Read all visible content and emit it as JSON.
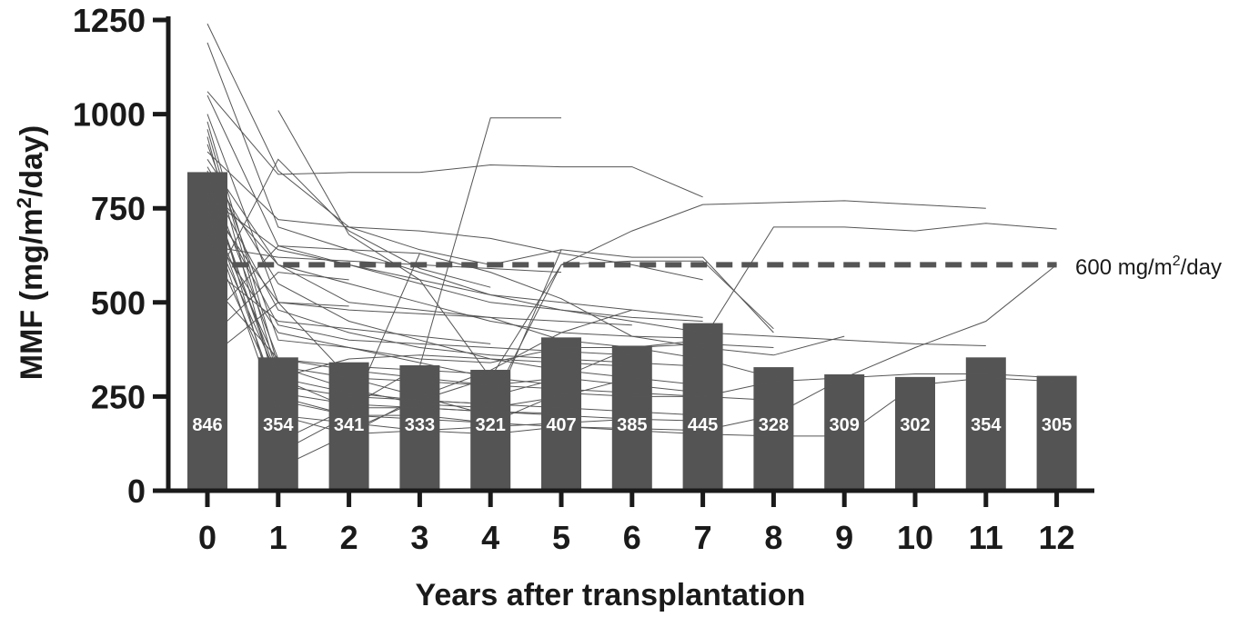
{
  "chart_data": {
    "type": "bar",
    "categories": [
      "0",
      "1",
      "2",
      "3",
      "4",
      "5",
      "6",
      "7",
      "8",
      "9",
      "10",
      "11",
      "12"
    ],
    "values": [
      846,
      354,
      341,
      333,
      321,
      407,
      385,
      445,
      328,
      309,
      302,
      354,
      305
    ],
    "bar_labels": [
      "846",
      "354",
      "341",
      "333",
      "321",
      "407",
      "385",
      "445",
      "328",
      "309",
      "302",
      "354",
      "305"
    ],
    "xlabel": "Years after transplantation",
    "ylabel": {
      "prefix": "MMF (mg/m",
      "sup": "2",
      "suffix": "/day)"
    },
    "ylim": [
      0,
      1250
    ],
    "yticks": [
      0,
      250,
      500,
      750,
      1000,
      1250
    ],
    "ytick_labels": [
      "0",
      "250",
      "500",
      "750",
      "1000",
      "1250"
    ],
    "reference_line": {
      "value": 600,
      "x_start": 0.35,
      "x_end": 12,
      "label": {
        "prefix": "600 mg/m",
        "sup": "2",
        "suffix": "/day"
      }
    },
    "individual_lines": [
      [
        [
          0,
          1240
        ],
        [
          1,
          850
        ],
        [
          2,
          700
        ],
        [
          3,
          640
        ],
        [
          4,
          600
        ],
        [
          5,
          640
        ],
        [
          6,
          620
        ],
        [
          7,
          620
        ],
        [
          8,
          420
        ]
      ],
      [
        [
          0,
          1190
        ],
        [
          1,
          700
        ],
        [
          2,
          640
        ],
        [
          3,
          580
        ],
        [
          4,
          520
        ],
        [
          5,
          500
        ],
        [
          6,
          480
        ],
        [
          7,
          460
        ]
      ],
      [
        [
          0,
          1060
        ],
        [
          1,
          840
        ],
        [
          2,
          845
        ],
        [
          3,
          845
        ],
        [
          4,
          865
        ],
        [
          5,
          860
        ],
        [
          6,
          860
        ],
        [
          7,
          780
        ]
      ],
      [
        [
          0,
          1050
        ],
        [
          1,
          650
        ],
        [
          2,
          600
        ],
        [
          3,
          550
        ],
        [
          4,
          500
        ],
        [
          5,
          480
        ],
        [
          6,
          450
        ],
        [
          7,
          420
        ],
        [
          8,
          410
        ],
        [
          9,
          400
        ],
        [
          10,
          390
        ],
        [
          11,
          385
        ]
      ],
      [
        [
          0,
          1000
        ],
        [
          1,
          500
        ],
        [
          2,
          300
        ],
        [
          3,
          250
        ],
        [
          4,
          200
        ],
        [
          5,
          640
        ]
      ],
      [
        [
          0,
          980
        ],
        [
          1,
          330
        ],
        [
          2,
          270
        ],
        [
          3,
          230
        ],
        [
          4,
          220
        ],
        [
          5,
          250
        ],
        [
          6,
          300
        ]
      ],
      [
        [
          0,
          960
        ],
        [
          1,
          300
        ],
        [
          2,
          260
        ],
        [
          3,
          240
        ],
        [
          4,
          230
        ],
        [
          5,
          600
        ],
        [
          6,
          610
        ],
        [
          7,
          610
        ],
        [
          8,
          430
        ]
      ],
      [
        [
          0,
          940
        ],
        [
          1,
          250
        ],
        [
          2,
          200
        ],
        [
          3,
          200
        ],
        [
          4,
          180
        ],
        [
          5,
          260
        ],
        [
          6,
          250
        ],
        [
          7,
          250
        ],
        [
          8,
          290
        ],
        [
          9,
          300
        ],
        [
          10,
          310
        ],
        [
          11,
          310
        ],
        [
          12,
          300
        ]
      ],
      [
        [
          0,
          920
        ],
        [
          1,
          400
        ],
        [
          2,
          380
        ],
        [
          3,
          350
        ],
        [
          4,
          340
        ],
        [
          5,
          380
        ],
        [
          6,
          380
        ],
        [
          7,
          390
        ],
        [
          8,
          380
        ]
      ],
      [
        [
          0,
          900
        ],
        [
          1,
          720
        ],
        [
          2,
          700
        ],
        [
          3,
          690
        ],
        [
          4,
          670
        ],
        [
          5,
          630
        ],
        [
          6,
          600
        ],
        [
          7,
          560
        ]
      ],
      [
        [
          0,
          880
        ],
        [
          1,
          600
        ],
        [
          2,
          500
        ],
        [
          3,
          480
        ],
        [
          4,
          460
        ],
        [
          5,
          400
        ],
        [
          6,
          380
        ],
        [
          7,
          350
        ],
        [
          8,
          300
        ]
      ],
      [
        [
          0,
          860
        ],
        [
          1,
          550
        ],
        [
          2,
          450
        ],
        [
          3,
          400
        ],
        [
          4,
          350
        ],
        [
          5,
          320
        ],
        [
          6,
          300
        ],
        [
          7,
          280
        ]
      ],
      [
        [
          0,
          850
        ],
        [
          1,
          200
        ],
        [
          2,
          180
        ],
        [
          3,
          160
        ],
        [
          4,
          150
        ],
        [
          5,
          170
        ],
        [
          6,
          160
        ],
        [
          7,
          150
        ],
        [
          8,
          145
        ],
        [
          9,
          145
        ],
        [
          10,
          280
        ],
        [
          11,
          300
        ],
        [
          12,
          290
        ]
      ],
      [
        [
          0,
          840
        ],
        [
          1,
          350
        ],
        [
          2,
          320
        ],
        [
          3,
          300
        ],
        [
          4,
          280
        ],
        [
          5,
          300
        ],
        [
          6,
          280
        ],
        [
          7,
          260
        ]
      ],
      [
        [
          0,
          830
        ],
        [
          1,
          480
        ],
        [
          2,
          420
        ],
        [
          3,
          380
        ],
        [
          4,
          360
        ],
        [
          5,
          350
        ],
        [
          6,
          340
        ],
        [
          7,
          330
        ]
      ],
      [
        [
          0,
          820
        ],
        [
          1,
          280
        ],
        [
          2,
          250
        ],
        [
          3,
          240
        ],
        [
          4,
          230
        ],
        [
          5,
          220
        ],
        [
          6,
          210
        ],
        [
          7,
          200
        ]
      ],
      [
        [
          0,
          810
        ],
        [
          1,
          600
        ],
        [
          2,
          550
        ],
        [
          3,
          500
        ],
        [
          4,
          450
        ],
        [
          5,
          420
        ],
        [
          6,
          410
        ],
        [
          7,
          405
        ]
      ],
      [
        [
          0,
          800
        ],
        [
          1,
          300
        ],
        [
          2,
          220
        ],
        [
          3,
          220
        ],
        [
          4,
          210
        ],
        [
          5,
          200
        ],
        [
          6,
          190
        ],
        [
          7,
          185
        ]
      ],
      [
        [
          0,
          790
        ],
        [
          1,
          440
        ],
        [
          2,
          400
        ],
        [
          3,
          390
        ],
        [
          4,
          380
        ],
        [
          5,
          370
        ],
        [
          6,
          360
        ]
      ],
      [
        [
          0,
          780
        ],
        [
          1,
          640
        ],
        [
          2,
          600
        ],
        [
          3,
          560
        ],
        [
          4,
          520
        ],
        [
          5,
          480
        ],
        [
          6,
          460
        ],
        [
          7,
          450
        ]
      ],
      [
        [
          0,
          770
        ],
        [
          1,
          240
        ],
        [
          2,
          200
        ],
        [
          3,
          190
        ],
        [
          4,
          180
        ],
        [
          5,
          170
        ],
        [
          6,
          165
        ],
        [
          7,
          160
        ]
      ],
      [
        [
          0,
          760
        ],
        [
          1,
          500
        ],
        [
          2,
          480
        ],
        [
          3,
          470
        ],
        [
          4,
          460
        ],
        [
          5,
          450
        ],
        [
          6,
          440
        ]
      ],
      [
        [
          0,
          750
        ],
        [
          1,
          330
        ],
        [
          2,
          300
        ],
        [
          3,
          290
        ],
        [
          4,
          280
        ],
        [
          5,
          270
        ],
        [
          6,
          260
        ],
        [
          7,
          250
        ],
        [
          8,
          240
        ]
      ],
      [
        [
          0,
          740
        ],
        [
          1,
          200
        ],
        [
          2,
          150
        ],
        [
          3,
          160
        ],
        [
          4,
          170
        ],
        [
          5,
          180
        ],
        [
          6,
          190
        ]
      ],
      [
        [
          0,
          720
        ],
        [
          1,
          300
        ],
        [
          2,
          350
        ],
        [
          3,
          360
        ],
        [
          4,
          350
        ],
        [
          5,
          340
        ],
        [
          6,
          330
        ]
      ],
      [
        [
          0,
          700
        ],
        [
          1,
          420
        ],
        [
          2,
          380
        ],
        [
          3,
          340
        ],
        [
          4,
          300
        ],
        [
          5,
          280
        ]
      ],
      [
        [
          0,
          680
        ],
        [
          1,
          260
        ],
        [
          2,
          230
        ],
        [
          3,
          220
        ],
        [
          4,
          210
        ],
        [
          5,
          205
        ]
      ],
      [
        [
          0,
          650
        ],
        [
          1,
          620
        ],
        [
          2,
          610
        ],
        [
          3,
          600
        ],
        [
          4,
          590
        ],
        [
          5,
          580
        ]
      ],
      [
        [
          0,
          600
        ],
        [
          1,
          450
        ],
        [
          2,
          430
        ],
        [
          3,
          410
        ],
        [
          4,
          390
        ]
      ],
      [
        [
          0,
          560
        ],
        [
          1,
          350
        ],
        [
          2,
          330
        ],
        [
          3,
          320
        ],
        [
          4,
          310
        ]
      ],
      [
        [
          0,
          520
        ],
        [
          1,
          880
        ],
        [
          2,
          690
        ],
        [
          3,
          590
        ],
        [
          4,
          540
        ]
      ],
      [
        [
          0,
          450
        ],
        [
          1,
          650
        ],
        [
          2,
          640
        ],
        [
          3,
          630
        ]
      ],
      [
        [
          0,
          400
        ],
        [
          1,
          580
        ],
        [
          2,
          560
        ]
      ],
      [
        [
          0,
          350
        ],
        [
          1,
          500
        ],
        [
          2,
          490
        ]
      ],
      [
        [
          1,
          1010
        ],
        [
          2,
          680
        ],
        [
          3,
          560
        ],
        [
          4,
          300
        ]
      ],
      [
        [
          1,
          60
        ],
        [
          2,
          150
        ],
        [
          3,
          250
        ],
        [
          4,
          320
        ],
        [
          5,
          420
        ],
        [
          6,
          480
        ]
      ],
      [
        [
          1,
          100
        ],
        [
          2,
          200
        ],
        [
          3,
          630
        ],
        [
          4,
          580
        ],
        [
          5,
          510
        ],
        [
          6,
          410
        ],
        [
          7,
          380
        ],
        [
          8,
          360
        ],
        [
          9,
          410
        ]
      ],
      [
        [
          1,
          130
        ],
        [
          2,
          220
        ],
        [
          3,
          330
        ],
        [
          4,
          990
        ],
        [
          5,
          990
        ]
      ],
      [
        [
          2,
          160
        ],
        [
          3,
          240
        ],
        [
          4,
          300
        ],
        [
          5,
          600
        ],
        [
          6,
          690
        ],
        [
          7,
          760
        ],
        [
          8,
          765
        ],
        [
          9,
          770
        ],
        [
          10,
          760
        ],
        [
          11,
          750
        ]
      ],
      [
        [
          4,
          250
        ],
        [
          5,
          300
        ],
        [
          6,
          380
        ],
        [
          7,
          400
        ],
        [
          8,
          700
        ],
        [
          9,
          700
        ],
        [
          10,
          690
        ],
        [
          11,
          710
        ],
        [
          12,
          695
        ]
      ],
      [
        [
          7,
          160
        ],
        [
          8,
          200
        ],
        [
          9,
          300
        ],
        [
          10,
          380
        ],
        [
          11,
          450
        ],
        [
          12,
          600
        ]
      ]
    ]
  }
}
